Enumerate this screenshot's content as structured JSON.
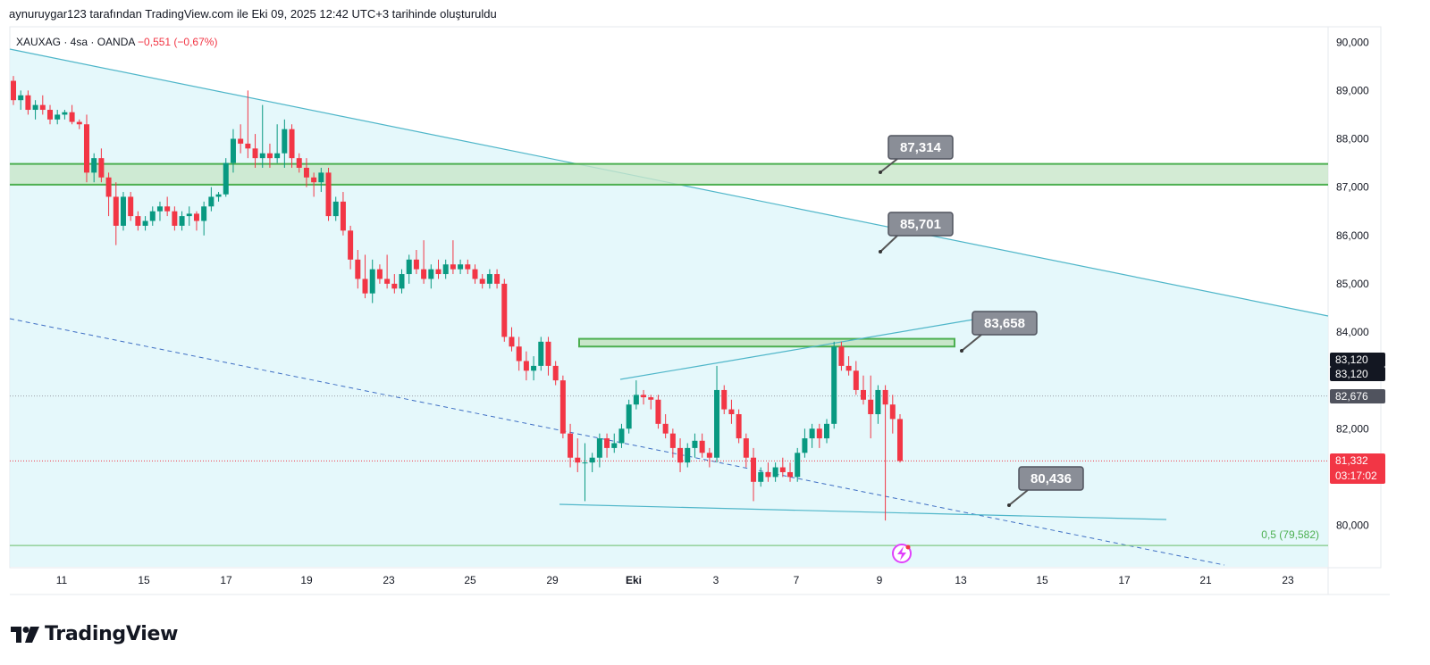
{
  "header": {
    "caption": "aynuruygar123 tarafından TradingView.com ile Eki 09, 2025 12:42 UTC+3 tarihinde oluşturuldu",
    "symbol": "XAUXAG · 4sa · OANDA",
    "change": "−0,551 (−0,67%)"
  },
  "brand": {
    "name": "TradingView",
    "logo_icon": "tradingview-logo-icon"
  },
  "colors": {
    "up": "#089981",
    "down": "#f23645",
    "channel_fill": "#e0f7fa",
    "channel_line": "#4fb6c9",
    "zone_fill": "#c8e6c9",
    "zone_line": "#4caf50",
    "fib_line": "#81c784"
  },
  "chart_data": {
    "type": "candlestick",
    "symbol": "XAUXAG",
    "interval": "4sa",
    "source": "OANDA",
    "ylim": [
      79200,
      90300
    ],
    "y_ticks": [
      {
        "value": 90000,
        "label": "90,000"
      },
      {
        "value": 89000,
        "label": "89,000"
      },
      {
        "value": 88000,
        "label": "88,000"
      },
      {
        "value": 87000,
        "label": "87,000"
      },
      {
        "value": 86000,
        "label": "86,000"
      },
      {
        "value": 85000,
        "label": "85,000"
      },
      {
        "value": 84000,
        "label": "84,000"
      },
      {
        "value": 82000,
        "label": "82,000"
      },
      {
        "value": 80000,
        "label": "80,000"
      }
    ],
    "x_ticks": [
      "11",
      "15",
      "17",
      "19",
      "23",
      "25",
      "29",
      "Eki",
      "3",
      "7",
      "9",
      "13",
      "15",
      "17",
      "21",
      "23"
    ],
    "price_labels": [
      {
        "value": 83120,
        "text": "83,120",
        "style": "dark"
      },
      {
        "value": 83120,
        "text": "83,120",
        "style": "dark"
      },
      {
        "value": 82676,
        "text": "82,676",
        "style": "gray"
      },
      {
        "value": 81332,
        "text": "81,332",
        "sub": "03:17:02",
        "style": "red"
      }
    ],
    "callouts": [
      "87,314",
      "85,701",
      "83,658",
      "80,436"
    ],
    "fib_label": "0,5 (79,582)",
    "fib_value": 79582,
    "resistance_zone": [
      87050,
      87480
    ],
    "small_zone": [
      83700,
      83860
    ],
    "candles": [
      [
        89200,
        89300,
        88700,
        88800
      ],
      [
        88800,
        89000,
        88600,
        88900
      ],
      [
        88900,
        89000,
        88500,
        88600
      ],
      [
        88600,
        88800,
        88400,
        88700
      ],
      [
        88700,
        88900,
        88500,
        88600
      ],
      [
        88600,
        88700,
        88300,
        88400
      ],
      [
        88400,
        88600,
        88300,
        88500
      ],
      [
        88500,
        88600,
        88400,
        88550
      ],
      [
        88550,
        88700,
        88300,
        88350
      ],
      [
        88350,
        88400,
        88200,
        88300
      ],
      [
        88300,
        88500,
        87100,
        87300
      ],
      [
        87300,
        87700,
        87100,
        87600
      ],
      [
        87600,
        87800,
        87100,
        87200
      ],
      [
        87200,
        87300,
        86400,
        86800
      ],
      [
        86800,
        87100,
        85800,
        86200
      ],
      [
        86200,
        86900,
        86100,
        86800
      ],
      [
        86800,
        86900,
        86300,
        86400
      ],
      [
        86400,
        86500,
        86100,
        86200
      ],
      [
        86200,
        86400,
        86100,
        86300
      ],
      [
        86300,
        86600,
        86200,
        86500
      ],
      [
        86500,
        86700,
        86300,
        86600
      ],
      [
        86600,
        86800,
        86400,
        86500
      ],
      [
        86500,
        86600,
        86100,
        86200
      ],
      [
        86200,
        86500,
        86100,
        86400
      ],
      [
        86400,
        86600,
        86200,
        86450
      ],
      [
        86450,
        86500,
        86100,
        86300
      ],
      [
        86300,
        86700,
        86000,
        86600
      ],
      [
        86600,
        87000,
        86500,
        86800
      ],
      [
        86800,
        86900,
        86700,
        86850
      ],
      [
        86850,
        87600,
        86800,
        87500
      ],
      [
        87500,
        88200,
        87300,
        88000
      ],
      [
        88000,
        88300,
        87700,
        87900
      ],
      [
        87900,
        89000,
        87600,
        87800
      ],
      [
        87800,
        88100,
        87400,
        87600
      ],
      [
        87600,
        88700,
        87400,
        87700
      ],
      [
        87700,
        87900,
        87400,
        87600
      ],
      [
        87600,
        88300,
        87500,
        87700
      ],
      [
        87700,
        88400,
        87400,
        88200
      ],
      [
        88200,
        88300,
        87400,
        87600
      ],
      [
        87600,
        87700,
        87300,
        87400
      ],
      [
        87400,
        87600,
        87000,
        87200
      ],
      [
        87200,
        87300,
        86800,
        87100
      ],
      [
        87100,
        87400,
        86900,
        87300
      ],
      [
        87300,
        87400,
        86300,
        86400
      ],
      [
        86400,
        86800,
        86300,
        86700
      ],
      [
        86700,
        86900,
        86000,
        86100
      ],
      [
        86100,
        86200,
        85300,
        85500
      ],
      [
        85500,
        85700,
        84900,
        85100
      ],
      [
        85100,
        85600,
        84700,
        84800
      ],
      [
        84800,
        85500,
        84600,
        85300
      ],
      [
        85300,
        85400,
        85000,
        85100
      ],
      [
        85100,
        85600,
        84900,
        85000
      ],
      [
        85000,
        85200,
        84800,
        84900
      ],
      [
        84900,
        85300,
        84800,
        85200
      ],
      [
        85200,
        85600,
        85000,
        85500
      ],
      [
        85500,
        85700,
        85200,
        85300
      ],
      [
        85300,
        85900,
        85000,
        85100
      ],
      [
        85100,
        85400,
        84900,
        85300
      ],
      [
        85300,
        85500,
        85100,
        85200
      ],
      [
        85200,
        85500,
        85100,
        85400
      ],
      [
        85400,
        85900,
        85200,
        85300
      ],
      [
        85300,
        85500,
        85200,
        85400
      ],
      [
        85400,
        85500,
        85200,
        85300
      ],
      [
        85300,
        85400,
        85000,
        85100
      ],
      [
        85100,
        85200,
        84900,
        85000
      ],
      [
        85000,
        85300,
        84900,
        85200
      ],
      [
        85200,
        85300,
        84900,
        85000
      ],
      [
        85000,
        85100,
        83800,
        83900
      ],
      [
        83900,
        84100,
        83600,
        83700
      ],
      [
        83700,
        83900,
        83200,
        83400
      ],
      [
        83400,
        83600,
        83000,
        83200
      ],
      [
        83200,
        83500,
        83000,
        83300
      ],
      [
        83300,
        83900,
        83200,
        83800
      ],
      [
        83800,
        83900,
        83100,
        83300
      ],
      [
        83300,
        83400,
        82900,
        83000
      ],
      [
        83000,
        83100,
        81800,
        81900
      ],
      [
        81900,
        82100,
        81200,
        81400
      ],
      [
        81400,
        81800,
        81100,
        81300
      ],
      [
        81300,
        81700,
        80500,
        81300
      ],
      [
        81300,
        81500,
        81100,
        81400
      ],
      [
        81400,
        81900,
        81200,
        81800
      ],
      [
        81800,
        81900,
        81400,
        81600
      ],
      [
        81600,
        81900,
        81500,
        81700
      ],
      [
        81700,
        82100,
        81600,
        82000
      ],
      [
        82000,
        82600,
        81900,
        82500
      ],
      [
        82500,
        83000,
        82400,
        82700
      ],
      [
        82700,
        82800,
        82500,
        82650
      ],
      [
        82650,
        82700,
        82400,
        82600
      ],
      [
        82600,
        82700,
        82000,
        82100
      ],
      [
        82100,
        82300,
        81800,
        81900
      ],
      [
        81900,
        82000,
        81400,
        81600
      ],
      [
        81600,
        81800,
        81100,
        81300
      ],
      [
        81300,
        81700,
        81200,
        81600
      ],
      [
        81600,
        81900,
        81400,
        81750
      ],
      [
        81750,
        81900,
        81400,
        81500
      ],
      [
        81500,
        81600,
        81200,
        81400
      ],
      [
        81400,
        83300,
        81300,
        82800
      ],
      [
        82800,
        82900,
        82300,
        82400
      ],
      [
        82400,
        82600,
        82100,
        82300
      ],
      [
        82300,
        82400,
        81700,
        81800
      ],
      [
        81800,
        81900,
        81200,
        81400
      ],
      [
        81400,
        81600,
        80500,
        80900
      ],
      [
        80900,
        81200,
        80800,
        81100
      ],
      [
        81100,
        81300,
        80900,
        81000
      ],
      [
        81000,
        81300,
        80900,
        81200
      ],
      [
        81200,
        81400,
        81000,
        81100
      ],
      [
        81100,
        81300,
        80900,
        81000
      ],
      [
        81000,
        81600,
        80900,
        81500
      ],
      [
        81500,
        82000,
        81400,
        81800
      ],
      [
        81800,
        82100,
        81600,
        82000
      ],
      [
        82000,
        82100,
        81600,
        81800
      ],
      [
        81800,
        82200,
        81700,
        82100
      ],
      [
        82100,
        83800,
        82000,
        83700
      ],
      [
        83700,
        83800,
        83200,
        83300
      ],
      [
        83300,
        83500,
        83100,
        83200
      ],
      [
        83200,
        83400,
        82700,
        82800
      ],
      [
        82800,
        83100,
        82500,
        82600
      ],
      [
        82600,
        83100,
        81800,
        82300
      ],
      [
        82300,
        82900,
        82100,
        82800
      ],
      [
        82800,
        82900,
        80100,
        82500
      ],
      [
        82500,
        82700,
        81900,
        82200
      ],
      [
        82200,
        82300,
        81300,
        81332
      ]
    ]
  }
}
